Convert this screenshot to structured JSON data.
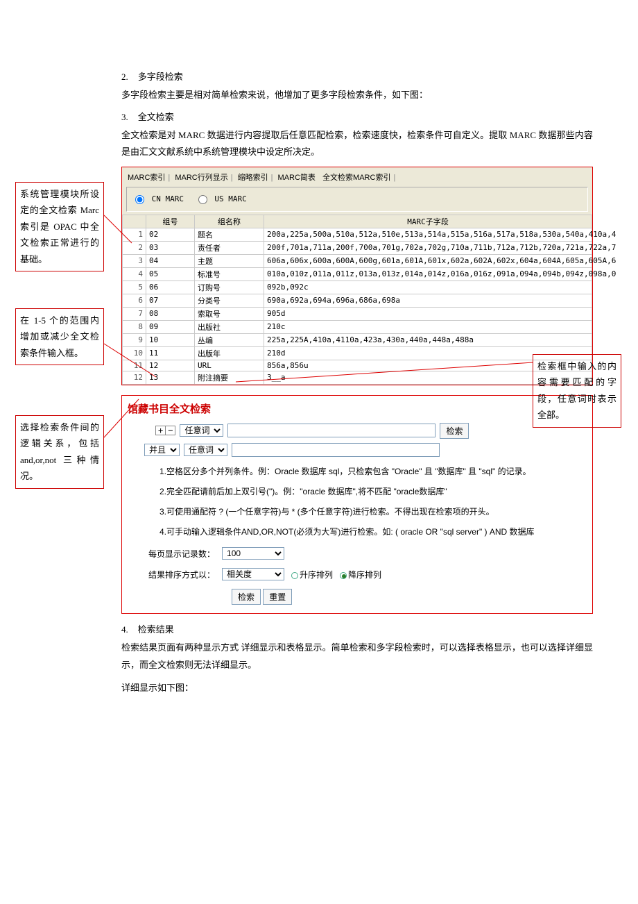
{
  "sections": {
    "s2": {
      "num": "2.",
      "title": "多字段检索",
      "text": "多字段检索主要是相对简单检索来说，他增加了更多字段检索条件，如下图："
    },
    "s3": {
      "num": "3.",
      "title": "全文检索",
      "text": "全文检索是对 MARC 数据进行内容提取后任意匹配检索，检索速度快，检索条件可自定义。提取 MARC 数据那些内容是由汇文文献系统中系统管理模块中设定所决定。"
    },
    "s4": {
      "num": "4.",
      "title": "检索结果",
      "text1": "检索结果页面有两种显示方式 详细显示和表格显示。简单检索和多字段检索时，可以选择表格显示，也可以选择详细显示，而全文检索则无法详细显示。",
      "text2": "详细显示如下图："
    }
  },
  "callouts": {
    "c1": "系统管理模块所设定的全文检索 Marc 索引是 OPAC 中全文检索正常进行的基础。",
    "c2": "在 1-5 个的范围内增加或减少全文检索条件输入框。",
    "c3": "选择检索条件间的逻辑关系，包括 and,or,not 三种情况。",
    "c4": "检索框中输入的内容需要匹配的字段，任意词时表示全部。"
  },
  "marc": {
    "tabs": [
      "MARC索引",
      "MARC行列显示",
      "缩略索引",
      "MARC简表",
      "全文检索MARC索引"
    ],
    "radio_cn": "CN MARC",
    "radio_us": "US MARC",
    "headers": [
      "",
      "组号",
      "组名称",
      "MARC子字段"
    ],
    "rows": [
      [
        "1",
        "02",
        "题名",
        "200a,225a,500a,510a,512a,510e,513a,514a,515a,516a,517a,518a,530a,540a,410a,4"
      ],
      [
        "2",
        "03",
        "责任者",
        "200f,701a,711a,200f,700a,701g,702a,702g,710a,711b,712a,712b,720a,721a,722a,7"
      ],
      [
        "3",
        "04",
        "主题",
        "606a,606x,600a,600A,600g,601a,601A,601x,602a,602A,602x,604a,604A,605a,605A,6"
      ],
      [
        "4",
        "05",
        "标准号",
        "010a,010z,011a,011z,013a,013z,014a,014z,016a,016z,091a,094a,094b,094z,098a,0"
      ],
      [
        "5",
        "06",
        "订购号",
        "092b,092c"
      ],
      [
        "6",
        "07",
        "分类号",
        "690a,692a,694a,696a,686a,698a"
      ],
      [
        "7",
        "08",
        "索取号",
        "905d"
      ],
      [
        "8",
        "09",
        "出版社",
        "210c"
      ],
      [
        "9",
        "10",
        "丛编",
        "225a,225A,410a,4110a,423a,430a,440a,448a,488a"
      ],
      [
        "10",
        "11",
        "出版年",
        "210d"
      ],
      [
        "11",
        "12",
        "URL",
        "856a,856u"
      ],
      [
        "12",
        "13",
        "附注摘要",
        "3__a"
      ]
    ]
  },
  "search": {
    "title": "馆藏书目全文检索",
    "plus": "+",
    "minus": "−",
    "field_any": "任意词",
    "and_label": "并且",
    "btn_search": "检索",
    "btn_reset": "重置",
    "tips": [
      "1.空格区分多个并列条件。例：Oracle 数据库 sql，只检索包含 \"Oracle\" 且 \"数据库\" 且 \"sql\" 的记录。",
      "2.完全匹配请前后加上双引号(\")。例：\"oracle 数据库\",将不匹配 \"oracle数据库\"",
      "3.可使用通配符 ? (一个任意字符)与 * (多个任意字符)进行检索。不得出现在检索项的开头。",
      "4.可手动输入逻辑条件AND,OR,NOT(必须为大写)进行检索。如: ( oracle OR \"sql server\" ) AND 数据库"
    ],
    "perpage_label": "每页显示记录数：",
    "perpage_value": "100",
    "sort_label": "结果排序方式以：",
    "sort_value": "相关度",
    "radio_asc": "升序排列",
    "radio_desc": "降序排列"
  }
}
